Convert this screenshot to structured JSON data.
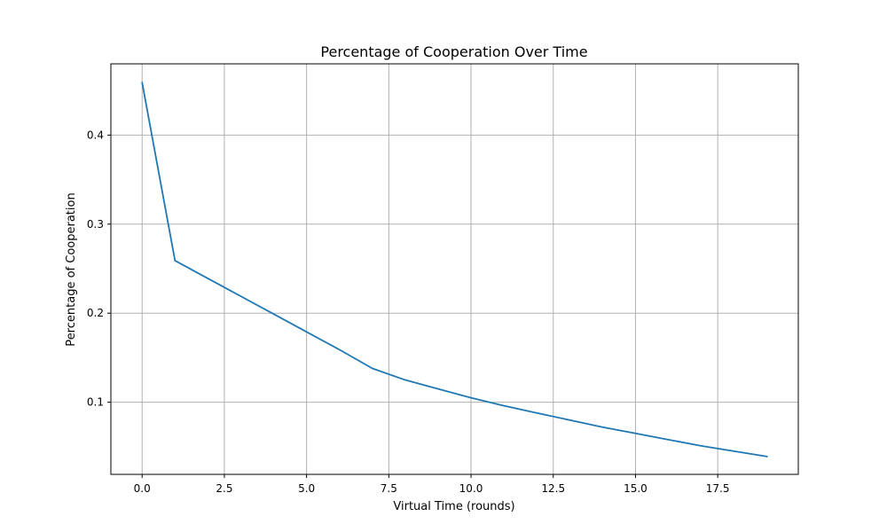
{
  "chart_data": {
    "type": "line",
    "title": "Percentage of Cooperation Over Time",
    "xlabel": "Virtual Time (rounds)",
    "ylabel": "Percentage of Cooperation",
    "xlim": [
      -0.95,
      19.95
    ],
    "ylim": [
      0.019,
      0.48
    ],
    "xticks": [
      0,
      2.5,
      5,
      7.5,
      10,
      12.5,
      15,
      17.5
    ],
    "xtick_labels": [
      "0.0",
      "2.5",
      "5.0",
      "7.5",
      "10.0",
      "12.5",
      "15.0",
      "17.5"
    ],
    "yticks": [
      0.1,
      0.2,
      0.3,
      0.4
    ],
    "ytick_labels": [
      "0.1",
      "0.2",
      "0.3",
      "0.4"
    ],
    "grid": true,
    "series": [
      {
        "color": "#1f77b4",
        "x": [
          0,
          1,
          2,
          3,
          4,
          5,
          6,
          7,
          8,
          9,
          10,
          11,
          12,
          13,
          14,
          15,
          16,
          17,
          18,
          19
        ],
        "y": [
          0.459,
          0.259,
          0.239,
          0.219,
          0.199,
          0.179,
          0.159,
          0.138,
          0.125,
          0.115,
          0.105,
          0.096,
          0.088,
          0.08,
          0.072,
          0.065,
          0.058,
          0.051,
          0.045,
          0.039
        ]
      }
    ]
  }
}
